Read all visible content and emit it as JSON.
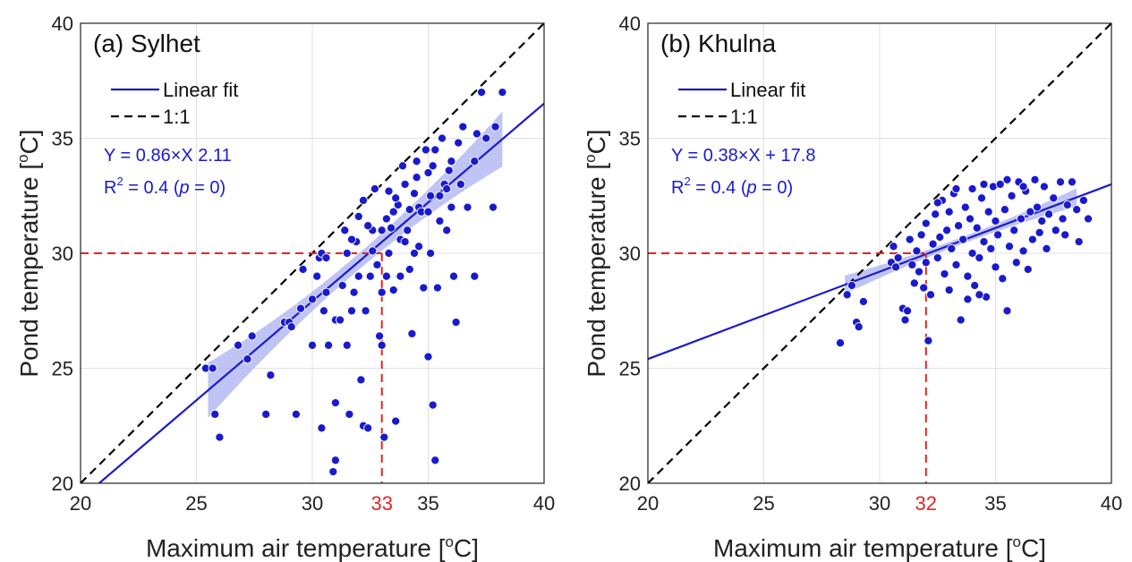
{
  "colors": {
    "points": "#1a1acc",
    "fit_line": "#1a1acc",
    "band": "#aab0f2",
    "one_to_one": "#000000",
    "threshold": "#e8231f",
    "grid": "#e0e0e0"
  },
  "chart_data": [
    {
      "type": "scatter",
      "title": "(a) Sylhet",
      "xlabel": "Maximum air temperature [oC]",
      "xlabel_main": "Maximum air temperature [",
      "xlabel_sup": "o",
      "xlabel_end": "C]",
      "ylabel": "Pond temperature [oC]",
      "ylabel_main": "Pond temperature [",
      "ylabel_sup": "o",
      "ylabel_end": "C]",
      "xlim": [
        20,
        40
      ],
      "ylim": [
        20,
        40
      ],
      "xticks": [
        "20",
        "25",
        "30",
        "35",
        "40"
      ],
      "yticks": [
        "20",
        "25",
        "30",
        "35",
        "40"
      ],
      "grid": true,
      "legend": [
        "Linear fit",
        "1:1"
      ],
      "equation": "Y = 0.86×X 2.11",
      "r2_prefix": "R",
      "r2_sup": "2",
      "r2_rest": " = 0.4 (",
      "r2_p": "p",
      "r2_end": " = 0)",
      "fit": {
        "slope": 0.86,
        "intercept": 2.11,
        "x_range": [
          20.0,
          40.0
        ]
      },
      "band": {
        "x_range": [
          25.5,
          38.2
        ],
        "halfwidth_ends": 1.2,
        "halfwidth_mid": 0.35
      },
      "threshold": {
        "x": 33,
        "y": 30,
        "label": "33"
      },
      "points": [
        [
          25.4,
          25.0
        ],
        [
          25.7,
          25.0
        ],
        [
          25.8,
          23.0
        ],
        [
          26.0,
          22.0
        ],
        [
          26.8,
          26.0
        ],
        [
          27.2,
          25.4
        ],
        [
          27.4,
          26.4
        ],
        [
          28.0,
          23.0
        ],
        [
          28.2,
          24.7
        ],
        [
          28.8,
          27.0
        ],
        [
          29.0,
          27.0
        ],
        [
          29.1,
          26.8
        ],
        [
          29.3,
          23.0
        ],
        [
          29.5,
          27.6
        ],
        [
          29.6,
          29.3
        ],
        [
          30.0,
          28.0
        ],
        [
          30.0,
          26.0
        ],
        [
          30.2,
          29.0
        ],
        [
          30.3,
          29.8
        ],
        [
          30.4,
          30.0
        ],
        [
          30.4,
          22.4
        ],
        [
          30.5,
          27.5
        ],
        [
          30.6,
          28.3
        ],
        [
          30.7,
          26.0
        ],
        [
          30.9,
          20.5
        ],
        [
          31.0,
          21.0
        ],
        [
          31.0,
          23.5
        ],
        [
          31.0,
          27.1
        ],
        [
          31.2,
          27.1
        ],
        [
          31.3,
          28.6
        ],
        [
          31.5,
          30.0
        ],
        [
          31.5,
          26.0
        ],
        [
          31.6,
          23.0
        ],
        [
          31.7,
          27.5
        ],
        [
          31.8,
          28.3
        ],
        [
          31.9,
          30.5
        ],
        [
          32.0,
          29.0
        ],
        [
          32.1,
          24.5
        ],
        [
          32.2,
          22.5
        ],
        [
          32.3,
          27.5
        ],
        [
          32.4,
          22.4
        ],
        [
          32.5,
          29.0
        ],
        [
          32.6,
          31.0
        ],
        [
          32.6,
          30.1
        ],
        [
          32.8,
          29.5
        ],
        [
          32.9,
          26.4
        ],
        [
          33.0,
          26.0
        ],
        [
          33.0,
          28.3
        ],
        [
          33.1,
          22.0
        ],
        [
          33.2,
          29.0
        ],
        [
          33.3,
          30.0
        ],
        [
          33.4,
          31.1
        ],
        [
          33.5,
          31.8
        ],
        [
          33.5,
          28.4
        ],
        [
          33.6,
          22.7
        ],
        [
          33.7,
          32.1
        ],
        [
          33.8,
          30.6
        ],
        [
          33.8,
          29.0
        ],
        [
          34.0,
          30.5
        ],
        [
          34.0,
          33.0
        ],
        [
          34.2,
          31.9
        ],
        [
          34.2,
          29.3
        ],
        [
          34.3,
          26.5
        ],
        [
          34.4,
          30.0
        ],
        [
          34.5,
          33.3
        ],
        [
          34.5,
          34.0
        ],
        [
          34.6,
          32.0
        ],
        [
          34.7,
          31.8
        ],
        [
          34.8,
          28.5
        ],
        [
          35.0,
          31.8
        ],
        [
          35.0,
          33.5
        ],
        [
          35.0,
          25.5
        ],
        [
          35.1,
          32.5
        ],
        [
          35.1,
          30.0
        ],
        [
          35.2,
          23.4
        ],
        [
          35.3,
          21.0
        ],
        [
          35.3,
          34.5
        ],
        [
          35.4,
          28.5
        ],
        [
          35.5,
          32.5
        ],
        [
          35.6,
          35.0
        ],
        [
          35.7,
          33.0
        ],
        [
          35.8,
          31.0
        ],
        [
          36.0,
          34.0
        ],
        [
          36.0,
          32.0
        ],
        [
          36.1,
          29.0
        ],
        [
          36.2,
          27.0
        ],
        [
          36.4,
          33.0
        ],
        [
          36.5,
          35.5
        ],
        [
          36.7,
          32.0
        ],
        [
          37.0,
          29.0
        ],
        [
          37.0,
          34.0
        ],
        [
          37.1,
          35.2
        ],
        [
          37.3,
          37.0
        ],
        [
          37.5,
          35.0
        ],
        [
          37.8,
          32.0
        ],
        [
          37.9,
          35.5
        ],
        [
          38.2,
          37.0
        ],
        [
          30.6,
          29.8
        ],
        [
          31.4,
          31.0
        ],
        [
          32.0,
          31.6
        ],
        [
          32.2,
          32.3
        ],
        [
          32.7,
          32.8
        ],
        [
          33.2,
          31.5
        ],
        [
          33.6,
          32.4
        ],
        [
          33.9,
          33.8
        ],
        [
          34.1,
          31.0
        ],
        [
          34.4,
          32.6
        ],
        [
          34.9,
          34.5
        ],
        [
          35.2,
          33.8
        ],
        [
          35.5,
          31.4
        ],
        [
          35.9,
          33.6
        ],
        [
          36.3,
          34.8
        ],
        [
          33.0,
          31.0
        ],
        [
          33.3,
          32.7
        ],
        [
          32.4,
          31.2
        ],
        [
          31.7,
          30.6
        ],
        [
          34.6,
          30.3
        ],
        [
          35.8,
          32.8
        ]
      ]
    },
    {
      "type": "scatter",
      "title": "(b) Khulna",
      "xlabel": "Maximum air temperature [oC]",
      "xlabel_main": "Maximum air temperature [",
      "xlabel_sup": "o",
      "xlabel_end": "C]",
      "ylabel": "Pond temperature [oC]",
      "ylabel_main": "Pond temperature [",
      "ylabel_sup": "o",
      "ylabel_end": "C]",
      "xlim": [
        20,
        40
      ],
      "ylim": [
        20,
        40
      ],
      "xticks": [
        "20",
        "25",
        "30",
        "35",
        "40"
      ],
      "yticks": [
        "20",
        "25",
        "30",
        "35",
        "40"
      ],
      "grid": true,
      "legend": [
        "Linear fit",
        "1:1"
      ],
      "equation": "Y = 0.38×X + 17.8",
      "r2_prefix": "R",
      "r2_sup": "2",
      "r2_rest": " = 0.4 (",
      "r2_p": "p",
      "r2_end": " = 0)",
      "fit": {
        "slope": 0.38,
        "intercept": 17.8,
        "x_range": [
          20.0,
          40.0
        ]
      },
      "band": {
        "x_range": [
          28.5,
          38.5
        ],
        "halfwidth_ends": 0.4,
        "halfwidth_mid": 0.15
      },
      "threshold": {
        "x": 32,
        "y": 30,
        "label": "32"
      },
      "points": [
        [
          28.3,
          26.1
        ],
        [
          28.6,
          28.2
        ],
        [
          28.8,
          28.6
        ],
        [
          29.0,
          27.0
        ],
        [
          29.1,
          26.8
        ],
        [
          29.3,
          27.9
        ],
        [
          30.5,
          29.6
        ],
        [
          30.6,
          30.3
        ],
        [
          30.7,
          29.4
        ],
        [
          30.8,
          29.8
        ],
        [
          31.0,
          27.6
        ],
        [
          31.1,
          27.1
        ],
        [
          31.2,
          27.5
        ],
        [
          31.3,
          30.6
        ],
        [
          31.4,
          29.5
        ],
        [
          31.5,
          28.7
        ],
        [
          31.6,
          30.1
        ],
        [
          31.7,
          29.2
        ],
        [
          31.8,
          30.8
        ],
        [
          31.9,
          28.5
        ],
        [
          32.0,
          29.6
        ],
        [
          32.0,
          31.3
        ],
        [
          32.1,
          26.2
        ],
        [
          32.2,
          28.2
        ],
        [
          32.3,
          30.4
        ],
        [
          32.4,
          31.7
        ],
        [
          32.5,
          29.8
        ],
        [
          32.6,
          30.7
        ],
        [
          32.7,
          32.3
        ],
        [
          32.8,
          29.1
        ],
        [
          32.9,
          31.0
        ],
        [
          33.0,
          28.4
        ],
        [
          33.0,
          31.8
        ],
        [
          33.1,
          30.2
        ],
        [
          33.2,
          32.6
        ],
        [
          33.3,
          29.5
        ],
        [
          33.4,
          31.2
        ],
        [
          33.5,
          27.1
        ],
        [
          33.6,
          30.6
        ],
        [
          33.7,
          32.0
        ],
        [
          33.8,
          29.0
        ],
        [
          33.9,
          31.5
        ],
        [
          34.0,
          30.0
        ],
        [
          34.0,
          32.8
        ],
        [
          34.1,
          28.6
        ],
        [
          34.2,
          31.1
        ],
        [
          34.3,
          29.8
        ],
        [
          34.4,
          32.4
        ],
        [
          34.5,
          30.5
        ],
        [
          34.6,
          28.1
        ],
        [
          34.7,
          31.8
        ],
        [
          34.8,
          30.2
        ],
        [
          34.9,
          32.9
        ],
        [
          35.0,
          29.4
        ],
        [
          35.0,
          31.4
        ],
        [
          35.1,
          30.8
        ],
        [
          35.2,
          33.0
        ],
        [
          35.3,
          28.9
        ],
        [
          35.4,
          31.9
        ],
        [
          35.5,
          27.5
        ],
        [
          35.6,
          30.3
        ],
        [
          35.7,
          32.5
        ],
        [
          35.8,
          31.0
        ],
        [
          35.9,
          29.6
        ],
        [
          36.0,
          33.1
        ],
        [
          36.1,
          31.5
        ],
        [
          36.2,
          30.1
        ],
        [
          36.3,
          32.7
        ],
        [
          36.4,
          29.3
        ],
        [
          36.5,
          31.8
        ],
        [
          36.6,
          30.6
        ],
        [
          36.7,
          33.2
        ],
        [
          36.8,
          32.0
        ],
        [
          36.9,
          30.9
        ],
        [
          37.0,
          31.4
        ],
        [
          37.1,
          32.9
        ],
        [
          37.2,
          30.2
        ],
        [
          37.3,
          31.7
        ],
        [
          37.5,
          32.4
        ],
        [
          37.6,
          31.0
        ],
        [
          37.8,
          33.1
        ],
        [
          37.9,
          31.5
        ],
        [
          38.0,
          30.8
        ],
        [
          38.1,
          32.1
        ],
        [
          38.3,
          33.1
        ],
        [
          38.5,
          31.9
        ],
        [
          38.6,
          30.5
        ],
        [
          38.8,
          32.3
        ],
        [
          39.0,
          31.5
        ],
        [
          32.5,
          32.2
        ],
        [
          33.3,
          32.8
        ],
        [
          34.5,
          33.0
        ],
        [
          35.5,
          33.2
        ],
        [
          36.2,
          32.9
        ],
        [
          33.8,
          28.0
        ],
        [
          34.3,
          28.2
        ]
      ]
    }
  ]
}
